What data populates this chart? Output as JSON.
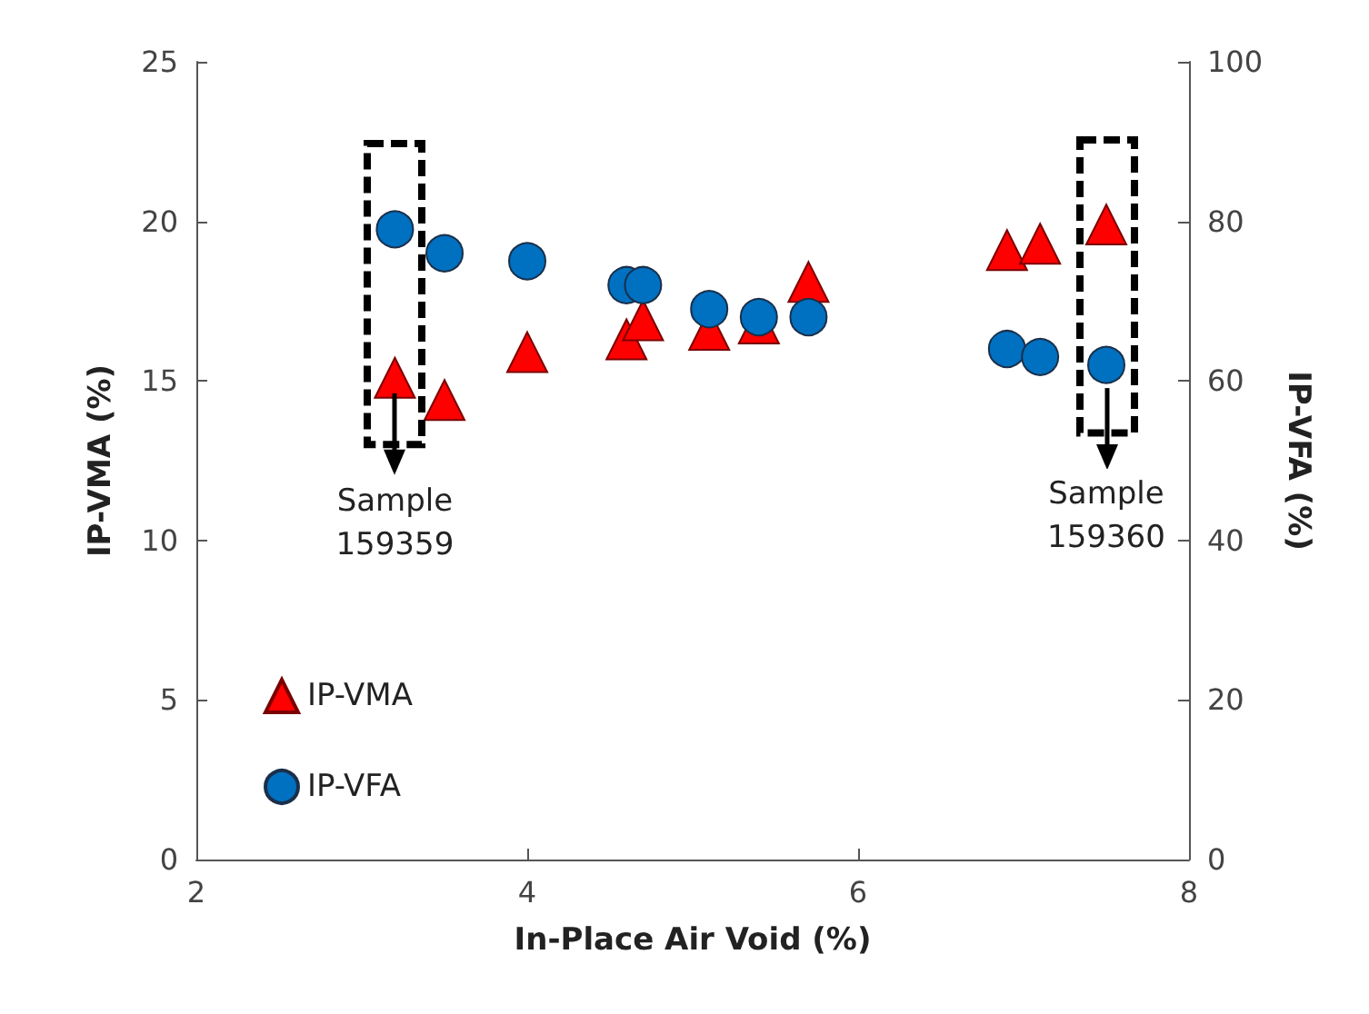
{
  "chart_data": {
    "type": "scatter",
    "xlabel": "In-Place Air Void (%)",
    "ylabel": "IP-VMA (%)",
    "y2label": "IP-VFA (%)",
    "x": [
      3.2,
      3.5,
      4.0,
      4.6,
      4.7,
      5.1,
      5.4,
      5.7,
      6.9,
      7.1,
      7.5
    ],
    "series": [
      {
        "name": "IP-VMA",
        "color": "#ff0000",
        "marker": "triangle",
        "values": [
          15.1,
          14.4,
          15.9,
          16.3,
          16.9,
          16.6,
          16.8,
          18.1,
          19.1,
          19.3,
          19.9
        ]
      },
      {
        "name": "IP-VFA",
        "color": "#0070c0",
        "marker": "circle",
        "axis": "y2",
        "values": [
          79,
          76,
          75,
          72,
          72,
          69,
          68,
          68,
          64,
          63,
          62
        ]
      }
    ],
    "xlim": [
      2,
      8
    ],
    "xticks": [
      2,
      4,
      6,
      8
    ],
    "ylim": [
      0,
      25
    ],
    "yticks": [
      0,
      5,
      10,
      15,
      20,
      25
    ],
    "y2lim": [
      0,
      100
    ],
    "y2ticks": [
      0,
      20,
      40,
      60,
      80,
      100
    ],
    "grid": false,
    "legend": "bottom left",
    "annotations": [
      {
        "text": "Sample 159359",
        "x": 3.2,
        "y": 14.6
      },
      {
        "text": "Sample 159360",
        "x": 7.5,
        "y": 14.8
      }
    ]
  }
}
